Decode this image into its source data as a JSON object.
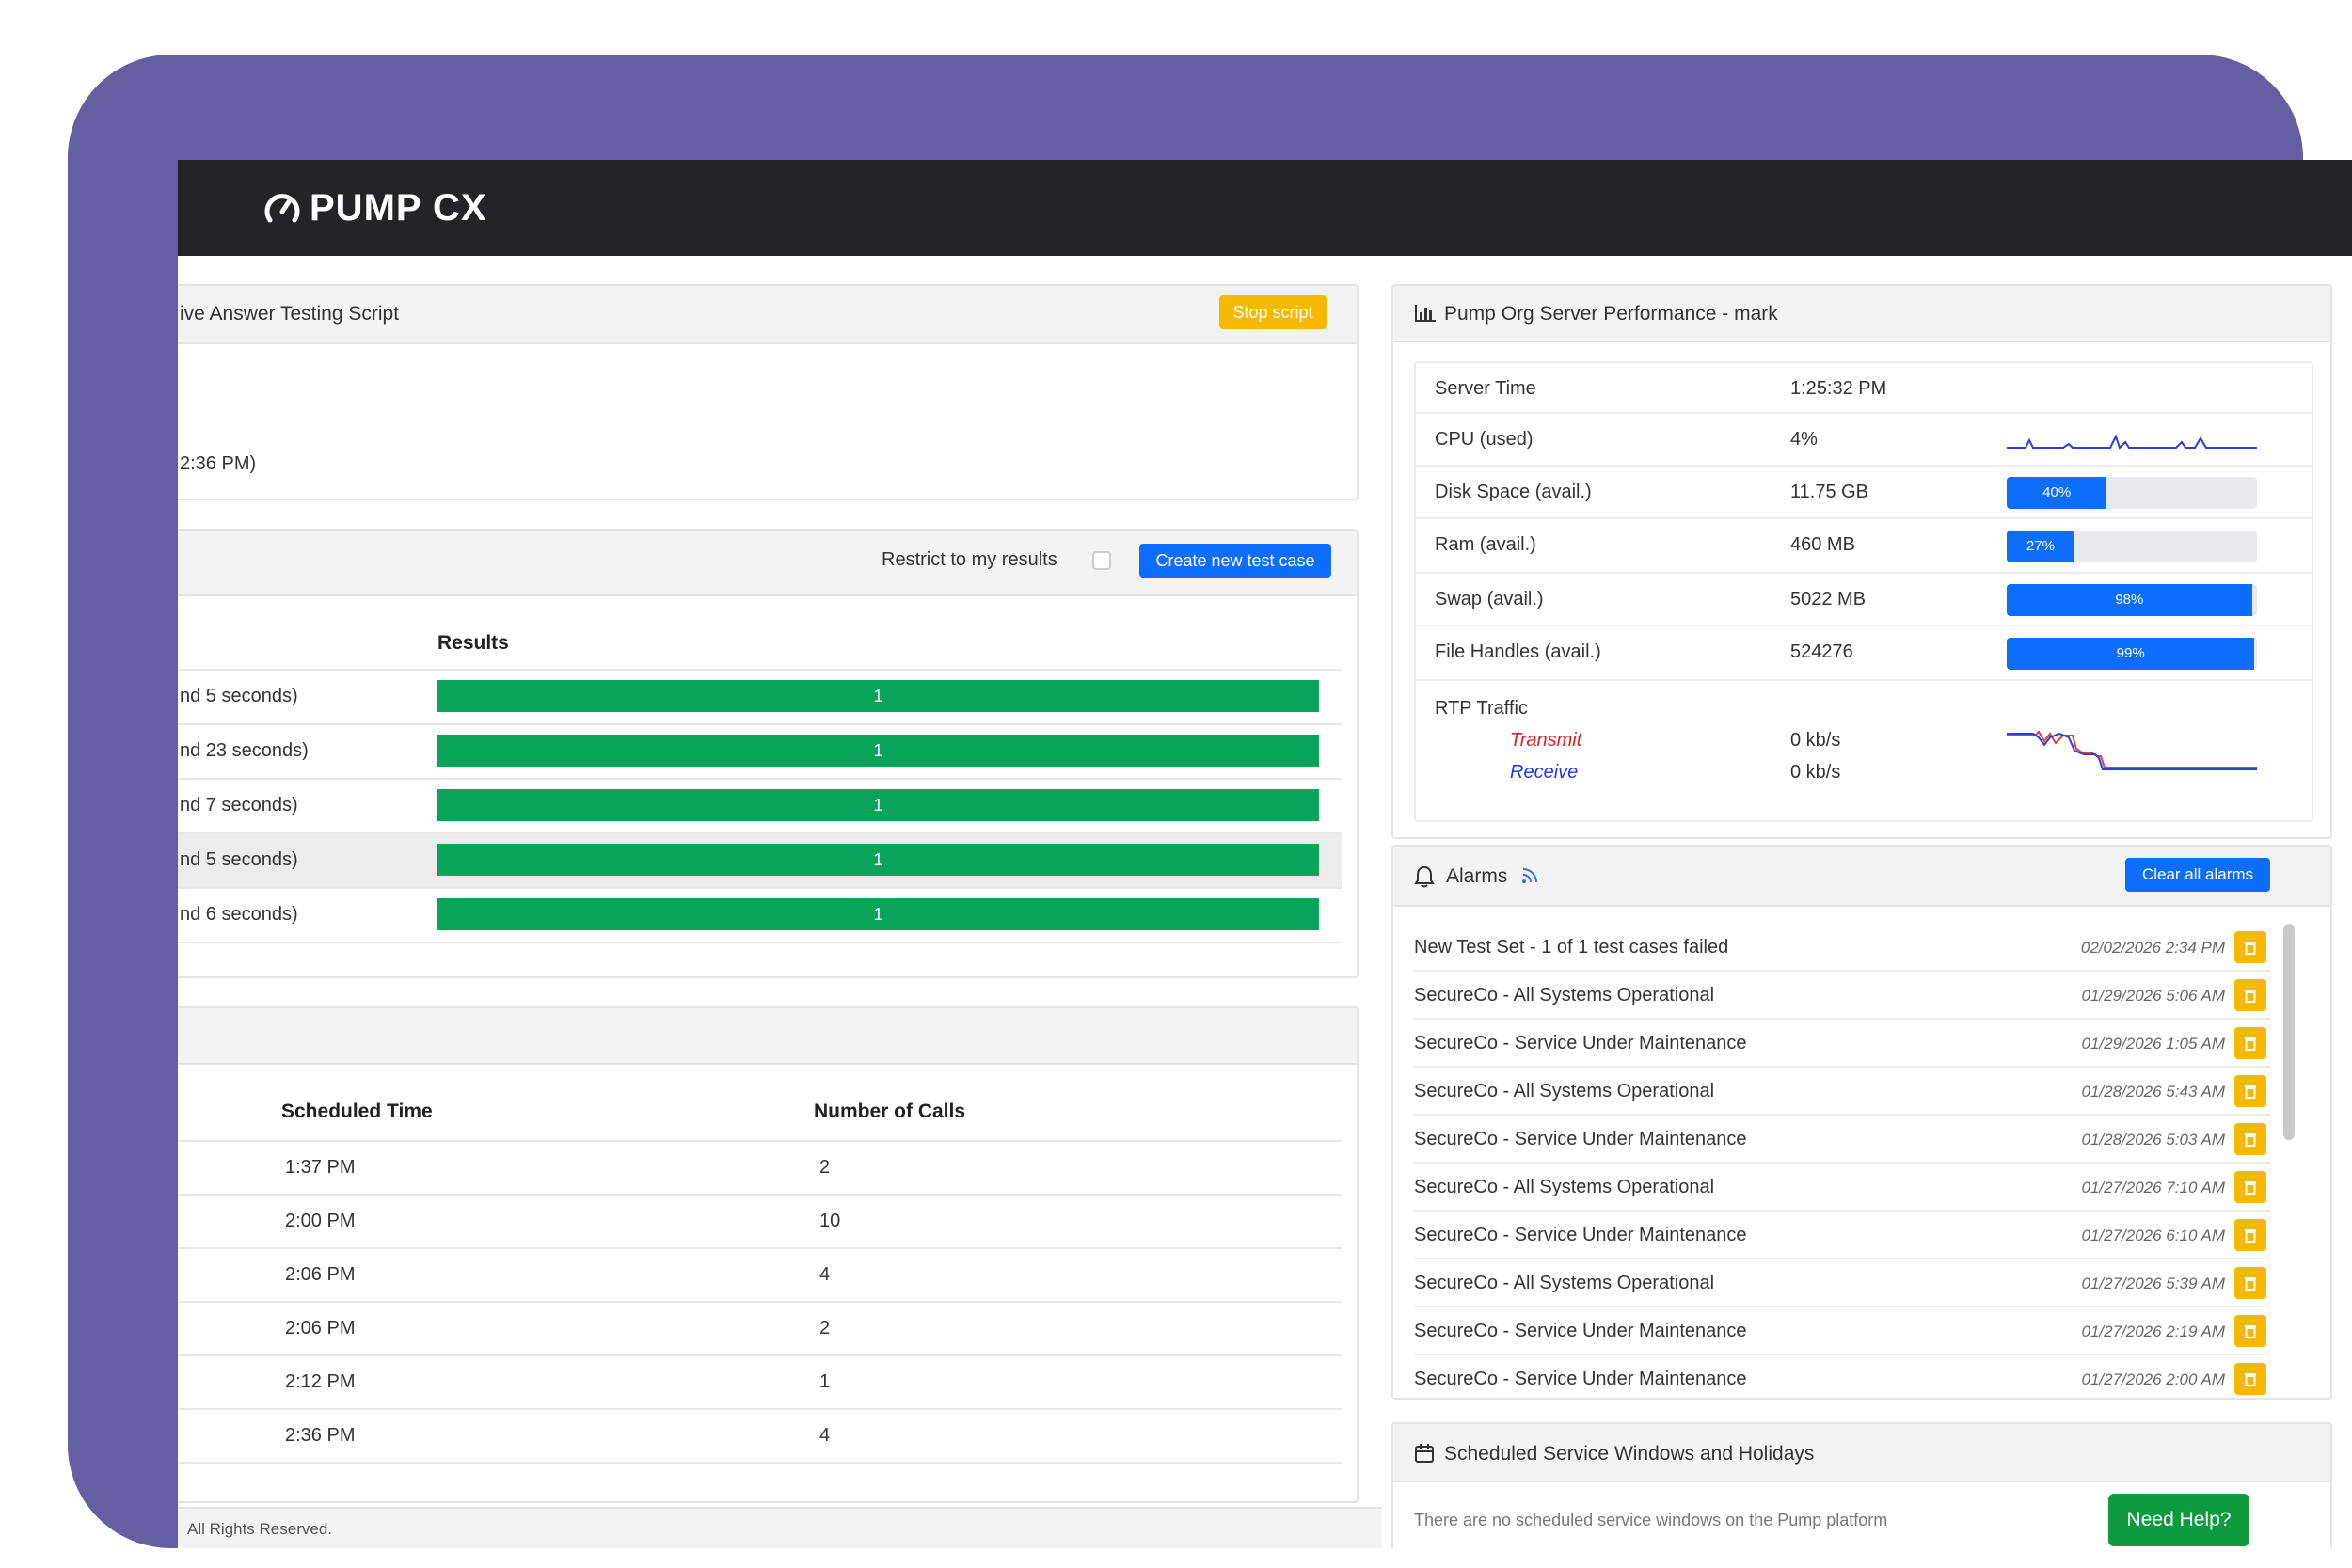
{
  "brand": {
    "name": "PUMP CX",
    "colors": {
      "frame": "#655ea3",
      "navbar": "#222528",
      "primary": "#0d6efd",
      "warning": "#f6b800",
      "success": "#0aa35a"
    }
  },
  "script_card": {
    "title": "ive Answer Testing Script",
    "stop_button": "Stop script",
    "time_text": "2:36 PM)"
  },
  "test_cases": {
    "restrict_label": "Restrict to my results",
    "create_button": "Create new test case",
    "results_header": "Results",
    "rows": [
      {
        "label": "nd 5 seconds)",
        "value": "1"
      },
      {
        "label": "nd 23 seconds)",
        "value": "1"
      },
      {
        "label": "nd 7 seconds)",
        "value": "1"
      },
      {
        "label": "nd 5 seconds)",
        "value": "1"
      },
      {
        "label": "nd 6 seconds)",
        "value": "1"
      }
    ]
  },
  "schedule": {
    "col_time": "Scheduled Time",
    "col_calls": "Number of Calls",
    "rows": [
      {
        "time": "1:37 PM",
        "calls": "2"
      },
      {
        "time": "2:00 PM",
        "calls": "10"
      },
      {
        "time": "2:06 PM",
        "calls": "4"
      },
      {
        "time": "2:06 PM",
        "calls": "2"
      },
      {
        "time": "2:12 PM",
        "calls": "1"
      },
      {
        "time": "2:36 PM",
        "calls": "4"
      }
    ]
  },
  "footer": {
    "text": "All Rights Reserved."
  },
  "server": {
    "title": "Pump Org Server Performance - mark",
    "icon": "bar-chart-icon",
    "rows": [
      {
        "label": "Server Time",
        "value": "1:25:32 PM"
      },
      {
        "label": "CPU (used)",
        "value": "4%"
      },
      {
        "label": "Disk Space (avail.)",
        "value": "11.75 GB",
        "bar": "40%",
        "fill": 0.4
      },
      {
        "label": "Ram (avail.)",
        "value": "460 MB",
        "bar": "27%",
        "fill": 0.27
      },
      {
        "label": "Swap (avail.)",
        "value": "5022 MB",
        "bar": "98%",
        "fill": 0.98
      },
      {
        "label": "File Handles (avail.)",
        "value": "524276",
        "bar": "99%",
        "fill": 0.99
      }
    ],
    "rtp": {
      "label": "RTP Traffic",
      "transmit_label": "Transmit",
      "transmit_value": "0 kb/s",
      "receive_label": "Receive",
      "receive_value": "0 kb/s"
    }
  },
  "alarms": {
    "title": "Alarms",
    "clear_button": "Clear all alarms",
    "items": [
      {
        "text": "New Test Set - 1 of 1 test cases failed",
        "date": "02/02/2026 2:34 PM"
      },
      {
        "text": "SecureCo - All Systems Operational",
        "date": "01/29/2026 5:06 AM"
      },
      {
        "text": "SecureCo - Service Under Maintenance",
        "date": "01/29/2026 1:05 AM"
      },
      {
        "text": "SecureCo - All Systems Operational",
        "date": "01/28/2026 5:43 AM"
      },
      {
        "text": "SecureCo - Service Under Maintenance",
        "date": "01/28/2026 5:03 AM"
      },
      {
        "text": "SecureCo - All Systems Operational",
        "date": "01/27/2026 7:10 AM"
      },
      {
        "text": "SecureCo - Service Under Maintenance",
        "date": "01/27/2026 6:10 AM"
      },
      {
        "text": "SecureCo - All Systems Operational",
        "date": "01/27/2026 5:39 AM"
      },
      {
        "text": "SecureCo - Service Under Maintenance",
        "date": "01/27/2026 2:19 AM"
      },
      {
        "text": "SecureCo - Service Under Maintenance",
        "date": "01/27/2026 2:00 AM"
      }
    ]
  },
  "service_windows": {
    "title": "Scheduled Service Windows and Holidays",
    "body": "There are no scheduled service windows on the Pump platform"
  },
  "help_button": "Need Help?"
}
